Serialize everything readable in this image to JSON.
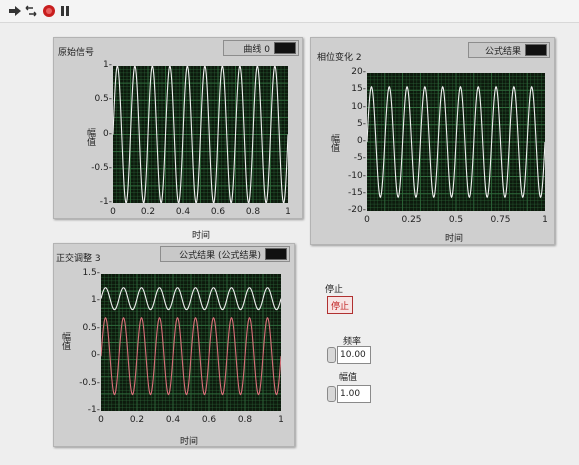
{
  "toolbar": {
    "icons": [
      "run-arrow-icon",
      "run-continuous-icon",
      "abort-icon",
      "pause-icon"
    ]
  },
  "colors": {
    "trace_white": "#f0f0f0",
    "trace_red": "#d9707a",
    "grid": "#2f6a3c",
    "plot_bg": "#0d1a0d"
  },
  "graph1": {
    "title": "原始信号",
    "legend": "曲线 0",
    "xlabel": "时间",
    "ylabel": "幅值",
    "xticks": [
      "0",
      "0.2",
      "0.4",
      "0.6",
      "0.8",
      "1"
    ],
    "yticks": [
      "1-",
      "0.5-",
      "0-",
      "-0.5-",
      "-1-"
    ]
  },
  "graph2": {
    "title": "相位变化 2",
    "legend": "公式结果",
    "xlabel": "时间",
    "ylabel": "幅值",
    "xticks": [
      "0",
      "0.25",
      "0.5",
      "0.75",
      "1"
    ],
    "yticks": [
      "20-",
      "15-",
      "10-",
      "5-",
      "0-",
      "-5-",
      "-10-",
      "-15-",
      "-20-"
    ]
  },
  "graph3": {
    "title": "正交调整 3",
    "legend": "公式结果 (公式结果)",
    "xlabel": "时间",
    "ylabel": "幅值",
    "xticks": [
      "0",
      "0.2",
      "0.4",
      "0.6",
      "0.8",
      "1"
    ],
    "yticks": [
      "1.5-",
      "1-",
      "0.5-",
      "0-",
      "-0.5-",
      "-1-"
    ]
  },
  "controls": {
    "stop_label": "停止",
    "stop_button": "停止",
    "freq_label": "频率",
    "freq_value": "10.00",
    "amp_label": "幅值",
    "amp_value": "1.00"
  },
  "chart_data": [
    {
      "type": "line",
      "title": "原始信号",
      "xlabel": "时间",
      "ylabel": "幅值",
      "xlim": [
        0,
        1
      ],
      "ylim": [
        -1,
        1
      ],
      "series": [
        {
          "name": "曲线 0",
          "function": "sine",
          "amplitude": 1,
          "offset": 0,
          "frequency": 10
        }
      ]
    },
    {
      "type": "line",
      "title": "相位变化 2",
      "xlabel": "时间",
      "ylabel": "幅值",
      "xlim": [
        0,
        1
      ],
      "ylim": [
        -20,
        20
      ],
      "series": [
        {
          "name": "公式结果",
          "function": "sine",
          "amplitude": 16,
          "offset": 0,
          "frequency": 10
        }
      ]
    },
    {
      "type": "line",
      "title": "正交调整 3",
      "xlabel": "时间",
      "ylabel": "幅值",
      "xlim": [
        0,
        1
      ],
      "ylim": [
        -1,
        1.5
      ],
      "series": [
        {
          "name": "公式结果",
          "function": "sine",
          "amplitude": 0.2,
          "offset": 1.05,
          "frequency": 10
        },
        {
          "name": "公式结果",
          "function": "sine",
          "amplitude": 0.7,
          "offset": 0,
          "frequency": 10
        }
      ]
    }
  ]
}
